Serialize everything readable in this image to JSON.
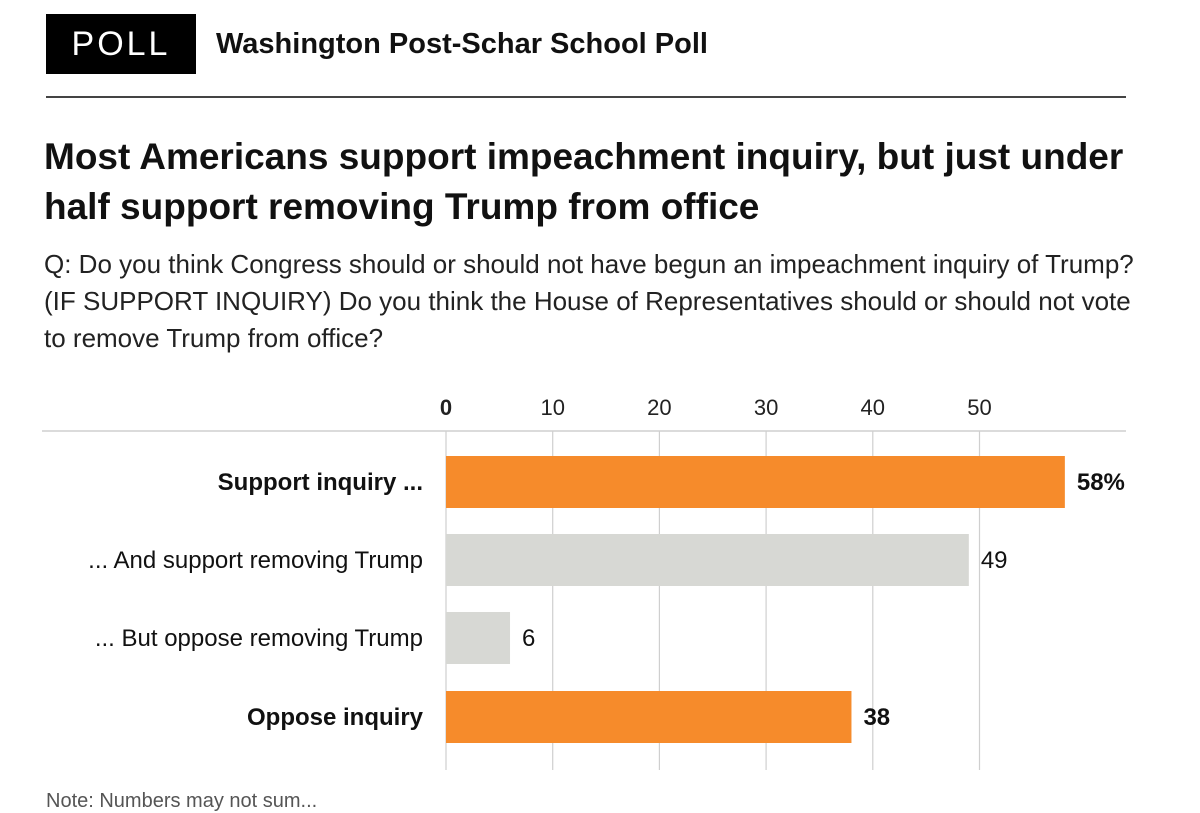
{
  "header": {
    "badge": "POLL",
    "source": "Washington Post-Schar School Poll"
  },
  "title": "Most Americans support impeachment inquiry, but just under half support removing Trump from office",
  "question": "Q: Do you think Congress should or should not have begun an impeachment inquiry of Trump? (IF SUPPORT INQUIRY) Do you think the House of Representatives should or should not vote to remove Trump from office?",
  "footnote": "Note: Numbers may not sum...",
  "colors": {
    "primary": "#f68b2b",
    "secondary": "#d7d8d4",
    "axis": "#cfcfcf",
    "text": "#111111"
  },
  "chart_data": {
    "type": "bar",
    "orientation": "horizontal",
    "xlim": [
      0,
      58
    ],
    "x_ticks": [
      0,
      10,
      20,
      30,
      40,
      50
    ],
    "grid": true,
    "categories": [
      "Support inquiry ...",
      "... And support removing Trump",
      "... But oppose removing Trump",
      "Oppose inquiry"
    ],
    "values": [
      58,
      49,
      6,
      38
    ],
    "value_labels": [
      "58%",
      "49",
      "6",
      "38"
    ],
    "emphasis": [
      true,
      false,
      false,
      true
    ],
    "bar_colors": [
      "#f68b2b",
      "#d7d8d4",
      "#d7d8d4",
      "#f68b2b"
    ]
  }
}
